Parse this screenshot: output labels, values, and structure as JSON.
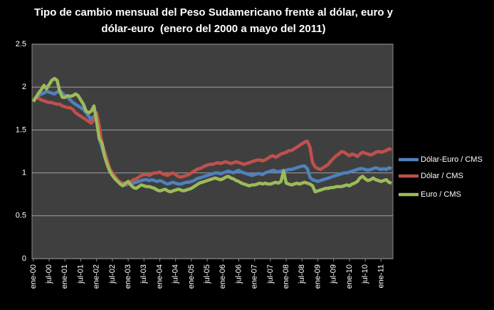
{
  "chart_data": {
    "type": "line",
    "title": [
      "Tipo de cambio mensual del Peso Sudamericano frente al dólar, euro y",
      "dólar-euro  (enero del 2000 a mayo del 2011)"
    ],
    "categories": [
      "ene-00",
      null,
      null,
      null,
      null,
      null,
      "jul-00",
      null,
      null,
      null,
      null,
      null,
      "ene-01",
      null,
      null,
      null,
      null,
      null,
      "jul-01",
      null,
      null,
      null,
      null,
      null,
      "ene-02",
      null,
      null,
      null,
      null,
      null,
      "jul-02",
      null,
      null,
      null,
      null,
      null,
      "ene-03",
      null,
      null,
      null,
      null,
      null,
      "jul-03",
      null,
      null,
      null,
      null,
      null,
      "ene-04",
      null,
      null,
      null,
      null,
      null,
      "jul-04",
      null,
      null,
      null,
      null,
      null,
      "ene-05",
      null,
      null,
      null,
      null,
      null,
      "jul-05",
      null,
      null,
      null,
      null,
      null,
      "ene-06",
      null,
      null,
      null,
      null,
      null,
      "jul-06",
      null,
      null,
      null,
      null,
      null,
      "ene-07",
      null,
      null,
      null,
      null,
      null,
      "jul-07",
      null,
      null,
      null,
      null,
      null,
      "ene-08",
      null,
      null,
      null,
      null,
      null,
      "jul-08",
      null,
      null,
      null,
      null,
      null,
      "ene-09",
      null,
      null,
      null,
      null,
      null,
      "jul-09",
      null,
      null,
      null,
      null,
      null,
      "ene-10",
      null,
      null,
      null,
      null,
      null,
      "jul-10",
      null,
      null,
      null,
      null,
      null,
      "ene-11",
      null,
      null,
      null,
      null
    ],
    "series": [
      {
        "name": "Dólar-Euro / CMS",
        "color": "#4f81bd",
        "values": [
          1.85,
          1.88,
          1.9,
          1.92,
          1.93,
          1.95,
          1.94,
          1.93,
          1.92,
          1.94,
          1.96,
          1.93,
          1.9,
          1.88,
          1.85,
          1.82,
          1.8,
          1.78,
          1.76,
          1.74,
          1.7,
          1.66,
          1.62,
          1.66,
          1.68,
          1.4,
          1.3,
          1.2,
          1.12,
          1.03,
          0.98,
          0.95,
          0.91,
          0.88,
          0.86,
          0.86,
          0.87,
          0.87,
          0.88,
          0.89,
          0.9,
          0.91,
          0.92,
          0.92,
          0.91,
          0.92,
          0.91,
          0.9,
          0.91,
          0.9,
          0.88,
          0.87,
          0.88,
          0.89,
          0.88,
          0.87,
          0.87,
          0.88,
          0.89,
          0.89,
          0.9,
          0.91,
          0.93,
          0.94,
          0.95,
          0.96,
          0.97,
          0.98,
          0.99,
          1.0,
          1.0,
          0.99,
          1.0,
          1.01,
          1.02,
          1.01,
          1.0,
          1.02,
          1.03,
          1.01,
          1.0,
          0.99,
          0.98,
          0.97,
          0.98,
          0.99,
          0.99,
          0.98,
          1.0,
          1.01,
          1.02,
          1.03,
          1.02,
          1.01,
          1.02,
          1.03,
          1.03,
          1.04,
          1.04,
          1.05,
          1.06,
          1.07,
          1.08,
          1.08,
          1.05,
          0.95,
          0.92,
          0.91,
          0.9,
          0.91,
          0.92,
          0.93,
          0.94,
          0.95,
          0.96,
          0.97,
          0.98,
          0.99,
          1.0,
          1.0,
          1.01,
          1.02,
          1.03,
          1.04,
          1.05,
          1.05,
          1.04,
          1.03,
          1.04,
          1.05,
          1.06,
          1.05,
          1.04,
          1.05,
          1.04,
          1.06,
          1.05
        ]
      },
      {
        "name": "Dólar / CMS",
        "color": "#c0504d",
        "values": [
          1.85,
          1.88,
          1.87,
          1.85,
          1.84,
          1.83,
          1.82,
          1.82,
          1.81,
          1.8,
          1.8,
          1.78,
          1.77,
          1.76,
          1.76,
          1.74,
          1.7,
          1.68,
          1.66,
          1.64,
          1.62,
          1.6,
          1.58,
          1.62,
          1.7,
          1.55,
          1.35,
          1.25,
          1.15,
          1.05,
          1.0,
          0.96,
          0.92,
          0.89,
          0.88,
          0.87,
          0.88,
          0.9,
          0.92,
          0.93,
          0.95,
          0.97,
          0.98,
          0.98,
          0.97,
          0.99,
          1.0,
          1.0,
          1.01,
          0.99,
          0.98,
          0.97,
          0.99,
          1.0,
          0.98,
          0.96,
          0.95,
          0.96,
          0.97,
          0.98,
          1.0,
          1.02,
          1.04,
          1.05,
          1.06,
          1.08,
          1.09,
          1.1,
          1.1,
          1.11,
          1.12,
          1.11,
          1.12,
          1.13,
          1.12,
          1.11,
          1.12,
          1.13,
          1.12,
          1.11,
          1.1,
          1.11,
          1.12,
          1.13,
          1.14,
          1.15,
          1.15,
          1.14,
          1.15,
          1.17,
          1.19,
          1.2,
          1.18,
          1.2,
          1.22,
          1.23,
          1.24,
          1.26,
          1.26,
          1.28,
          1.3,
          1.32,
          1.34,
          1.36,
          1.37,
          1.3,
          1.12,
          1.07,
          1.05,
          1.04,
          1.06,
          1.08,
          1.1,
          1.14,
          1.17,
          1.2,
          1.22,
          1.25,
          1.24,
          1.22,
          1.2,
          1.22,
          1.21,
          1.19,
          1.22,
          1.24,
          1.23,
          1.22,
          1.21,
          1.22,
          1.24,
          1.25,
          1.24,
          1.25,
          1.26,
          1.28,
          1.27
        ]
      },
      {
        "name": "Euro / CMS",
        "color": "#9bbb59",
        "values": [
          1.83,
          1.88,
          1.93,
          1.97,
          2.02,
          1.98,
          2.03,
          2.08,
          2.1,
          2.08,
          1.95,
          1.88,
          1.88,
          1.9,
          1.89,
          1.9,
          1.92,
          1.9,
          1.85,
          1.8,
          1.72,
          1.7,
          1.72,
          1.78,
          1.6,
          1.4,
          1.35,
          1.2,
          1.1,
          1.02,
          0.97,
          0.93,
          0.9,
          0.87,
          0.85,
          0.88,
          0.9,
          0.86,
          0.83,
          0.82,
          0.84,
          0.86,
          0.85,
          0.84,
          0.84,
          0.83,
          0.82,
          0.8,
          0.79,
          0.8,
          0.81,
          0.79,
          0.78,
          0.79,
          0.8,
          0.81,
          0.8,
          0.79,
          0.8,
          0.81,
          0.82,
          0.84,
          0.86,
          0.88,
          0.89,
          0.9,
          0.91,
          0.92,
          0.93,
          0.94,
          0.93,
          0.92,
          0.93,
          0.95,
          0.96,
          0.94,
          0.93,
          0.91,
          0.9,
          0.88,
          0.87,
          0.86,
          0.85,
          0.86,
          0.86,
          0.87,
          0.88,
          0.87,
          0.88,
          0.87,
          0.87,
          0.88,
          0.89,
          0.88,
          0.9,
          1.02,
          0.88,
          0.87,
          0.86,
          0.87,
          0.88,
          0.87,
          0.88,
          0.89,
          0.88,
          0.87,
          0.85,
          0.78,
          0.79,
          0.8,
          0.81,
          0.82,
          0.82,
          0.83,
          0.83,
          0.84,
          0.84,
          0.84,
          0.85,
          0.86,
          0.85,
          0.87,
          0.88,
          0.9,
          0.94,
          0.96,
          0.93,
          0.91,
          0.92,
          0.94,
          0.92,
          0.91,
          0.9,
          0.91,
          0.92,
          0.89,
          0.88
        ]
      }
    ],
    "ylim": [
      0,
      2.5
    ],
    "yticks": [
      0,
      0.5,
      1,
      1.5,
      2,
      2.5
    ],
    "grid": true,
    "legend": "right"
  }
}
